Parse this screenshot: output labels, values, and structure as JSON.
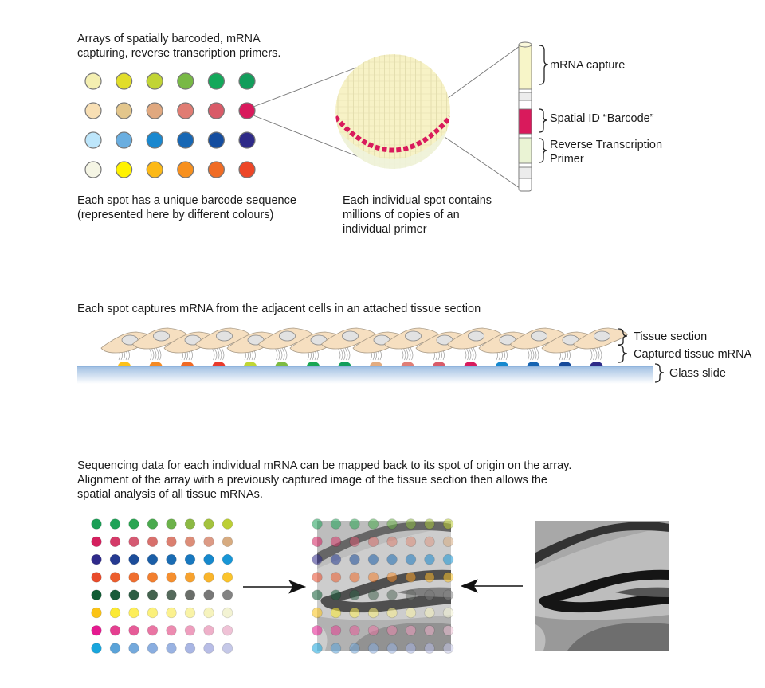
{
  "panel1": {
    "heading_line1": "Arrays of  spatially barcoded, mRNA",
    "heading_line2": "capturing, reverse transcription primers.",
    "caption_left_line1": "Each spot has a unique barcode sequence",
    "caption_left_line2": "(represented here by different colours)",
    "caption_mid_line1": "Each individual spot contains",
    "caption_mid_line2": "millions of copies of an",
    "caption_mid_line3": "individual primer",
    "label_capture": "mRNA capture",
    "label_barcode": "Spatial ID “Barcode”",
    "label_rt_line1": "Reverse Transcription",
    "label_rt_line2": "Primer",
    "spot_colors": [
      [
        "#f4efb1",
        "#e1dd2a",
        "#c1d434",
        "#78b945",
        "#13a85a",
        "#129d5b"
      ],
      [
        "#f8dfb4",
        "#e3c68c",
        "#e0a87f",
        "#e07c73",
        "#d95b68",
        "#d91a5c"
      ],
      [
        "#bde6fb",
        "#6aaee0",
        "#1a88cf",
        "#1767b4",
        "#144d9f",
        "#2e2a88"
      ],
      [
        "#f5f5e4",
        "#fff200",
        "#fcb917",
        "#f7901e",
        "#f06c25",
        "#ed4627"
      ]
    ],
    "primer_colors": {
      "capture": "#f7f5c8",
      "barcode": "#d91a5c",
      "rt_primer": "#eaf3d4"
    }
  },
  "panel2": {
    "heading": "Each spot captures mRNA from the adjacent cells in an attached tissue section",
    "label_tissue": "Tissue section",
    "label_captured": "Captured tissue mRNA",
    "label_glass": "Glass slide",
    "spot_colors": [
      "#fcc11c",
      "#f58a24",
      "#f06a25",
      "#e93a2b",
      "#c0d634",
      "#7dbb42",
      "#19a654",
      "#129e5c",
      "#e3ac80",
      "#e07e76",
      "#d95c6a",
      "#d81b5d",
      "#1689cf",
      "#1664b2",
      "#164a9a",
      "#2e2a88"
    ],
    "cell_color": "#f6dfc0"
  },
  "panel3": {
    "heading_line1": "Sequencing data for each individual mRNA can be mapped back to its spot of origin on the array.",
    "heading_line2": "Alignment of the array with a previously captured image of the tissue section then allows the",
    "heading_line3": "spatial analysis of all tissue mRNAs.",
    "grid_colors": [
      [
        "#1a9e55",
        "#1fa257",
        "#2aa552",
        "#4aaa4e",
        "#6cb24a",
        "#8cb944",
        "#a4c23e",
        "#bccf34"
      ],
      [
        "#d41f5e",
        "#d43a68",
        "#d55a72",
        "#d8706c",
        "#db7f70",
        "#dc8d78",
        "#dc9a85",
        "#d7ab80"
      ],
      [
        "#2f2a8a",
        "#253a91",
        "#1c4d9a",
        "#1a5ea7",
        "#1a6cb3",
        "#1878bf",
        "#1688cc",
        "#1796d6"
      ],
      [
        "#e94b2b",
        "#ec5e2e",
        "#ef6e2f",
        "#f27f2f",
        "#f58f2f",
        "#f7a22e",
        "#f9b52c",
        "#fbc42b"
      ],
      [
        "#0f5b33",
        "#1a5b3a",
        "#2e5e45",
        "#44634f",
        "#556a5c",
        "#6a6e6a",
        "#787878",
        "#838383"
      ],
      [
        "#fbc315",
        "#fbe932",
        "#fdee5a",
        "#fbf07a",
        "#fbf18f",
        "#f9f3a6",
        "#f6f3bd",
        "#f3f3d3"
      ],
      [
        "#e5198f",
        "#e43f90",
        "#e65c98",
        "#e975a3",
        "#ec8bb0",
        "#ee9ebe",
        "#eeb0c9",
        "#efc2d6"
      ],
      [
        "#18a6dd",
        "#5aa3d9",
        "#74a9dc",
        "#8aaee0",
        "#9ab3e2",
        "#a9b6e4",
        "#b8bde6",
        "#c5c8e8"
      ]
    ]
  }
}
